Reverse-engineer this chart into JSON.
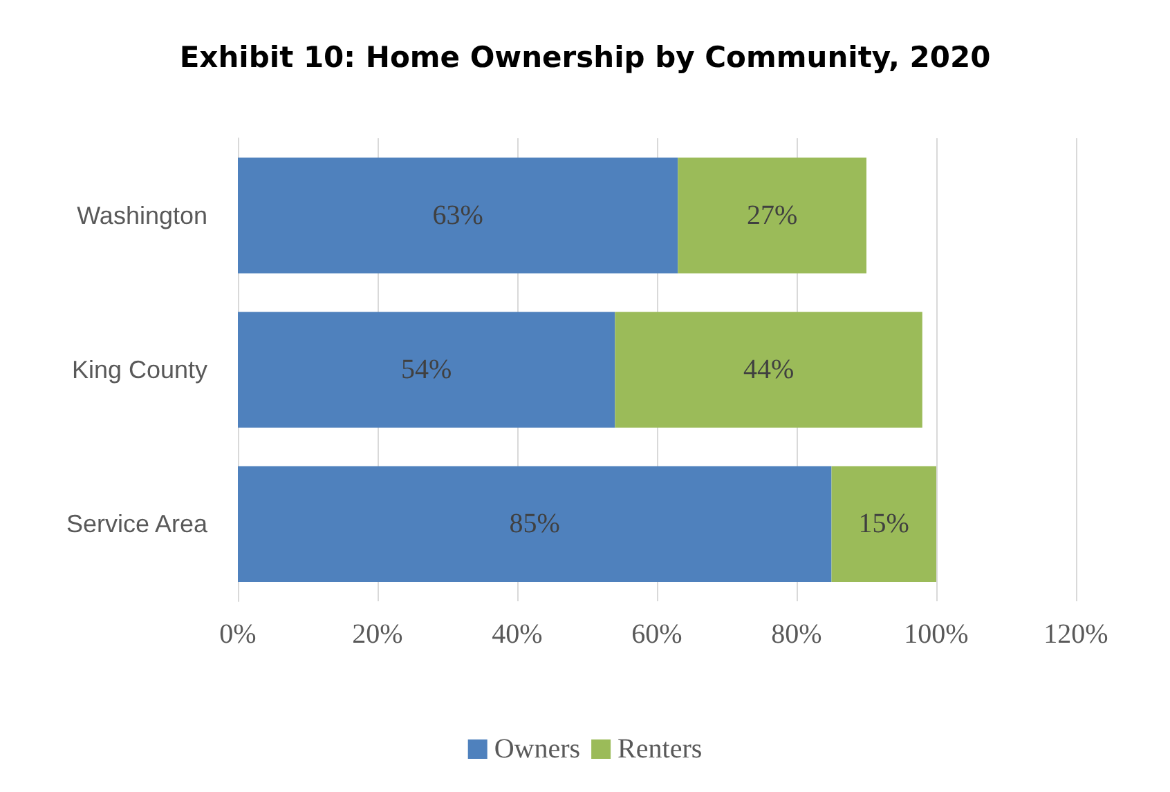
{
  "chart_data": {
    "type": "bar",
    "orientation": "horizontal",
    "stacked": true,
    "title": "Exhibit 10: Home Ownership by Community, 2020",
    "categories": [
      "Washington",
      "King County",
      "Service Area"
    ],
    "series": [
      {
        "name": "Owners",
        "color": "#4f81bd",
        "values": [
          63,
          54,
          85
        ],
        "value_labels": [
          "63%",
          "54%",
          "85%"
        ]
      },
      {
        "name": "Renters",
        "color": "#9bbb59",
        "values": [
          27,
          44,
          15
        ],
        "value_labels": [
          "27%",
          "44%",
          "15%"
        ]
      }
    ],
    "xlim": [
      0,
      120
    ],
    "xticks": [
      {
        "value": 0,
        "label": "0%"
      },
      {
        "value": 20,
        "label": "20%"
      },
      {
        "value": 40,
        "label": "40%"
      },
      {
        "value": 60,
        "label": "60%"
      },
      {
        "value": 80,
        "label": "80%"
      },
      {
        "value": 100,
        "label": "100%"
      },
      {
        "value": 120,
        "label": "120%"
      }
    ],
    "grid": "x",
    "legend": "bottom"
  }
}
